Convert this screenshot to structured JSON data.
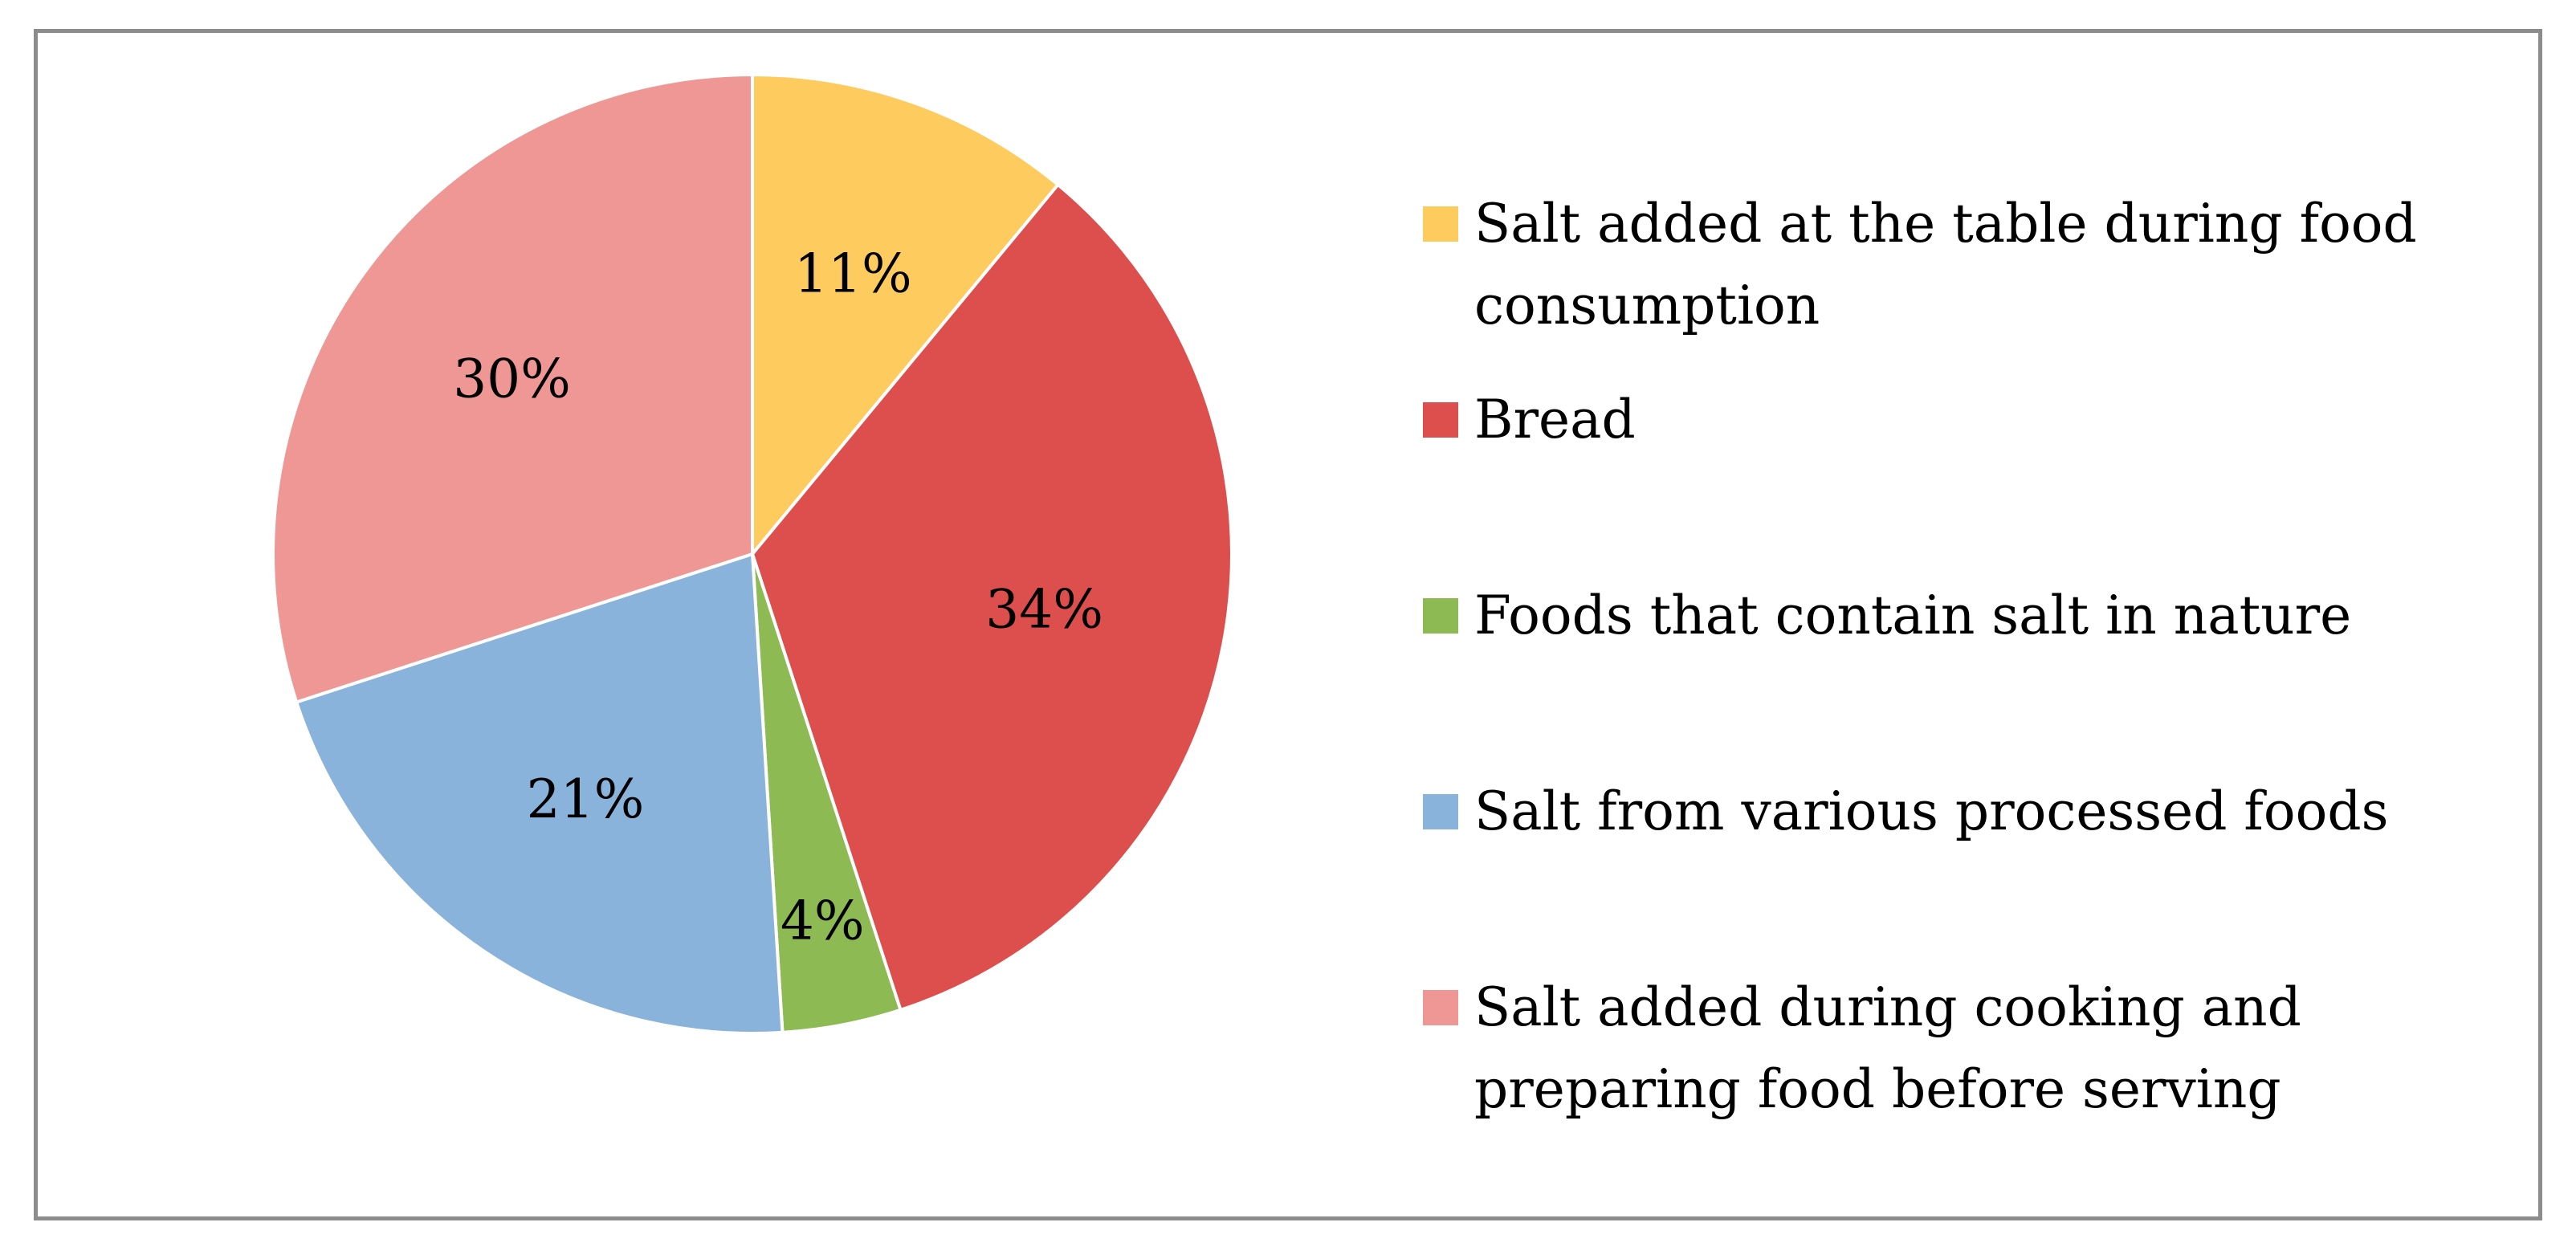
{
  "chart_data": {
    "type": "pie",
    "start_angle_deg": 0,
    "direction": "clockwise",
    "legend_position": "right",
    "slices": [
      {
        "label": "Salt added at the table during food consumption",
        "value": 11,
        "value_label": "11%",
        "color": "#FECB5E"
      },
      {
        "label": "Bread",
        "value": 34,
        "value_label": "34%",
        "color": "#DD4F4D"
      },
      {
        "label": "Foods that contain salt in nature",
        "value": 4,
        "value_label": "4%",
        "color": "#8DBA53"
      },
      {
        "label": "Salt from various processed foods",
        "value": 21,
        "value_label": "21%",
        "color": "#89B3DA"
      },
      {
        "label": "Salt added during cooking and preparing food before serving",
        "value": 30,
        "value_label": "30%",
        "color": "#EE9794"
      }
    ],
    "legend": [
      [
        "Salt added at the table during food",
        "consumption"
      ],
      [
        "Bread"
      ],
      [
        "Foods that contain salt in nature"
      ],
      [
        "Salt from various processed foods"
      ],
      [
        "Salt added during cooking and",
        "preparing food before serving"
      ]
    ]
  }
}
